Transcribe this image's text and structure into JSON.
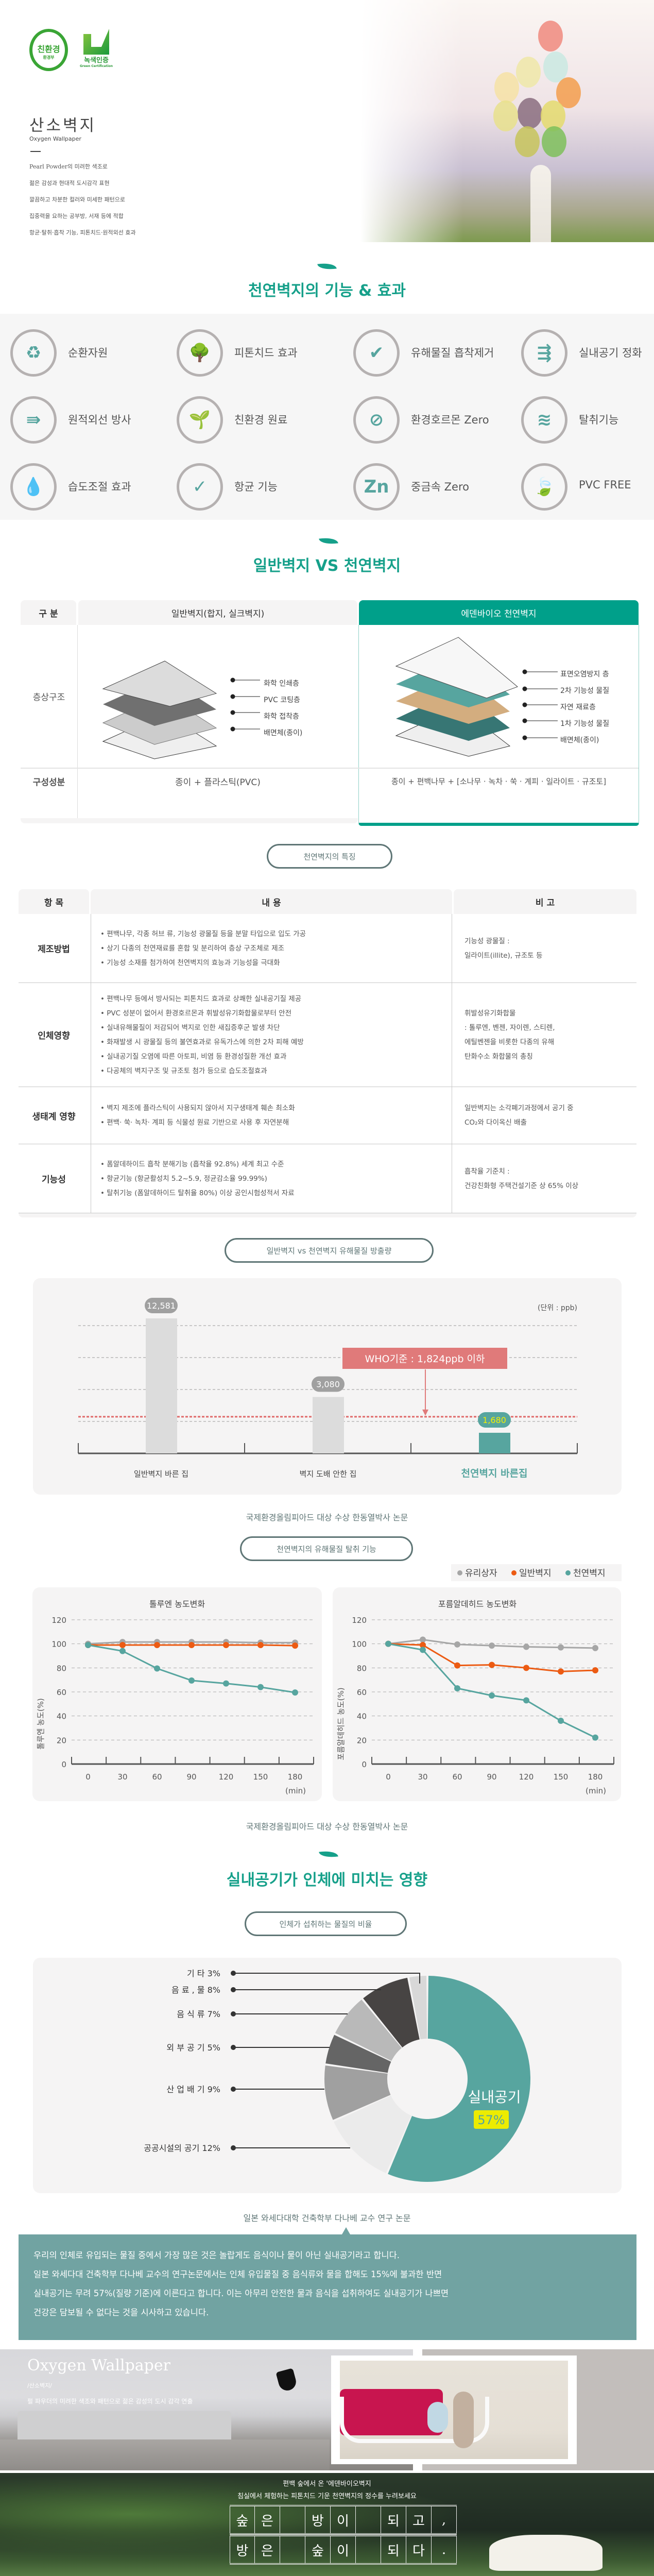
{
  "hero": {
    "logo_eco": "친환경",
    "logo_eco_sub": "환경부",
    "logo_green": "녹색인증",
    "logo_green_sub": "Green Certification",
    "title": "산소벽지",
    "subtitle": "Oxygen Wallpaper",
    "lines": [
      "Pearl Powder의 미려한 색조로",
      "젊은 감성과 현대적 도시감각 표현",
      "깔끔하고 차분한 컬러와 미세한 패턴으로",
      "집중력을 요하는 공부방, 서재 등에 적합",
      "항균·탈취·흡착 기능, 피톤치드·원적외선 효과"
    ]
  },
  "features": {
    "title": "천연벽지의 기능 & 효과",
    "items": [
      {
        "label": "순환자원",
        "icon": "recycle-icon",
        "glyph": "♻"
      },
      {
        "label": "피톤치드 효과",
        "icon": "tree-icon",
        "glyph": "🌳"
      },
      {
        "label": "유해물질 흡착제거",
        "icon": "shield-check-icon",
        "glyph": "✔"
      },
      {
        "label": "실내공기 정화",
        "icon": "air-filter-icon",
        "glyph": "⇶"
      },
      {
        "label": "원적외선 방사",
        "icon": "infrared-icon",
        "glyph": "⇛"
      },
      {
        "label": "친환경 원료",
        "icon": "sprout-hand-icon",
        "glyph": "🌱"
      },
      {
        "label": "환경호르몬 Zero",
        "icon": "no-gas-mask-icon",
        "glyph": "⊘"
      },
      {
        "label": "탈취기능",
        "icon": "deodorize-icon",
        "glyph": "≋"
      },
      {
        "label": "습도조절 효과",
        "icon": "water-drops-icon",
        "glyph": "💧"
      },
      {
        "label": "항균 기능",
        "icon": "antibacterial-shield-icon",
        "glyph": "✓"
      },
      {
        "label": "중금속 Zero",
        "icon": "no-zn-icon",
        "glyph": "Zn"
      },
      {
        "label": "PVC FREE",
        "icon": "pvc-free-leaf-icon",
        "glyph": "🍃"
      }
    ]
  },
  "compare": {
    "title": "일반벽지 VS 천연벽지",
    "col_head": "구 분",
    "general_head": "일반벽지(합지, 실크벽지)",
    "natural_head": "에덴바이오 천연벽지",
    "row_structure": "층상구조",
    "row_component": "구성성분",
    "general_layers": [
      "화학 인쇄층",
      "PVC 코팅층",
      "화학 접착층",
      "배면체(종이)"
    ],
    "natural_layers": [
      "표면오염방지 층",
      "2차 기능성 물질",
      "자연 재료층",
      "1차 기능성 물질",
      "배면체(종이)"
    ],
    "general_component": "종이 + 플라스틱(PVC)",
    "natural_component": "종이 + 편백나무 + [소나무 · 녹차 · 쑥 · 계피 · 일라이트 · 규조토]",
    "colors": {
      "accent": "#00a08a",
      "layer_teal": "#57a59f",
      "layer_dark_teal": "#377674"
    }
  },
  "characteristics": {
    "button": "천연벽지의 특징",
    "headers": [
      "항 목",
      "내   용",
      "비 고"
    ],
    "rows": [
      {
        "name": "제조방법",
        "items": [
          "편백나무, 각종 허브 류, 기능성 광물질 등을 분말 타입으로 입도 가공",
          "상기 다종의 천연재료를 혼합 및 분리하여 층상 구조체로 제조",
          "기능성 소재를 첨가하여 천연벽지의 효능과 기능성을 극대화"
        ],
        "note": [
          "기능성 광물질 :",
          "일라이트(illite), 규조토 등"
        ]
      },
      {
        "name": "인체영향",
        "items": [
          "편백나무 등에서 방사되는 피톤치드 효과로 상쾌한 실내공기질 제공",
          "PVC 성분이 없어서 환경호르몬과 휘발성유기화합물로부터 안전",
          "실내유해물질이 저감되어 벽지로 인한 새집증후군 발생 차단",
          "화재발생 시 광물질 등의 불연효과로 유독가스에 의한 2차 피해 예방",
          "실내공기질 오염에 따른 아토피, 비염 등 환경성질환 개선 효과",
          "다공체의 벽지구조 및 규조토 첨가 등으로 습도조절효과"
        ],
        "note": [
          "휘발성유기화합물",
          ": 톨루엔, 벤젠, 자이렌, 스티렌,",
          "  에틸벤젠을 비롯한 다종의 유해",
          "  탄화수소 화합물의 총칭"
        ]
      },
      {
        "name": "생태계 영향",
        "items": [
          "벽지 제조에 플라스틱이 사용되지 않아서 지구생태계 훼손 최소화",
          "편백· 쑥· 녹차· 계피 등 식물성 원료 기반으로 사용 후 자연분해"
        ],
        "note": [
          "일반벽지는 소각폐기과정에서 공기 중",
          "CO₂와 다이옥신 배출"
        ]
      },
      {
        "name": "기능성",
        "items": [
          "폼알데하이드 흡착 분해기능 (흡착율 92.8%) 세계 최고 수준",
          "항균기능 (항균활성치 5.2~5.9, 정균감소율 99.99%)",
          "탈취기능 (폼알데하이드 탈취율 80%) 이상 공인시험성적서 자료"
        ],
        "note": [
          "흡착율 기준치 :",
          "건강친화형 주택건설기준 상 65% 이상"
        ]
      }
    ]
  },
  "emission": {
    "button": "일반벽지 vs 천연벽지 유해물질 방출량",
    "caption": "국제환경올림피아드 대상 수상 한동열박사 논문"
  },
  "deodorize": {
    "button": "천연벽지의 유해물질 탈취 기능",
    "caption": "국제환경올림피아드 대상 수상 한동열박사 논문"
  },
  "indoor": {
    "title": "실내공기가 인체에 미치는 영향",
    "button": "인체가 섭취하는 물질의 비율",
    "caption": "일본 와세다대학 건축학부 다나베 교수 연구 논문",
    "message": [
      "우리의 인체로 유입되는 물질 중에서 가장 많은 것은 놀랍게도 음식이나 물이 아닌 실내공기라고 합니다.",
      "일본 와세다대 건축학부 다나베 교수의 연구논문에서는 인체 유입물질 중 음식류와 물을 합해도 15%에 불과한 반면",
      "실내공기는 무려 57%(질량 기준)에 이른다고 합니다. 이는 아무리 안전한 물과 음식을 섭취하여도 실내공기가 나쁘면",
      "건강은 담보될 수 없다는 것을 시사하고 있습니다."
    ]
  },
  "gallery": {
    "title": "Oxygen Wallpaper",
    "tag": "/산소벽지/",
    "desc": "펄 파우더의 미려한 색조와 패턴으로 젊은 감성의 도시 감각 연출"
  },
  "forest": {
    "line1": "편백 숲에서 온 '에덴바이오벽지",
    "line2": "침실에서 체험하는 피톤치드 기운 천연벽지의 정수를 누려보세요",
    "grid_row1": [
      "숲",
      "은",
      "",
      "방",
      "이",
      "",
      "되",
      "고",
      ","
    ],
    "grid_row2": [
      "방",
      "은",
      "",
      "숲",
      "이",
      "",
      "되",
      "다",
      "."
    ]
  },
  "chart_data": [
    {
      "type": "bar",
      "title": "일반벽지 vs 천연벽지 유해물질 방출량",
      "unit_label": "(단위 : ppb)",
      "categories": [
        "일반벽지 바른 집",
        "벽지 도배 안한 집",
        "천연벽지 바른집"
      ],
      "values": [
        12581,
        3080,
        1680
      ],
      "value_labels": [
        "12,581",
        "3,080",
        "1,680"
      ],
      "reference": {
        "label": "WHO기준 : 1,824ppb 이하",
        "value": 1824
      },
      "colors": [
        "#dcdcdc",
        "#dcdcdc",
        "#57a59f"
      ],
      "grid": true
    },
    {
      "type": "line",
      "title": "톨루엔 농도변화",
      "ylabel": "톨루엔 농도(%)",
      "xlabel": "(min)",
      "x": [
        0,
        30,
        60,
        90,
        120,
        150,
        180
      ],
      "yticks": [
        0,
        20,
        40,
        60,
        80,
        100,
        120
      ],
      "ylim": [
        0,
        120
      ],
      "series": [
        {
          "name": "유리상자",
          "color": "#a6a6a6",
          "values": [
            100,
            101.5,
            101.5,
            101.5,
            101.5,
            101,
            101
          ]
        },
        {
          "name": "일반벽지",
          "color": "#ec5b13",
          "values": [
            99,
            99,
            99,
            99,
            99,
            99,
            98.5
          ]
        },
        {
          "name": "천연벽지",
          "color": "#57a59f",
          "values": [
            99,
            94,
            79.5,
            69.5,
            67,
            64,
            59.5
          ]
        }
      ]
    },
    {
      "type": "line",
      "title": "포름알데히드 농도변화",
      "ylabel": "포름알데히드 농도(%)",
      "xlabel": "(min)",
      "x": [
        0,
        30,
        60,
        90,
        120,
        150,
        180
      ],
      "yticks": [
        0,
        20,
        40,
        60,
        80,
        100,
        120
      ],
      "ylim": [
        0,
        120
      ],
      "legend": "top-right",
      "series": [
        {
          "name": "유리상자",
          "color": "#a6a6a6",
          "values": [
            100,
            103.5,
            99.5,
            98.5,
            97.5,
            97,
            96.5
          ]
        },
        {
          "name": "일반벽지",
          "color": "#ec5b13",
          "values": [
            100,
            99,
            82,
            82.5,
            80,
            77,
            78
          ]
        },
        {
          "name": "천연벽지",
          "color": "#57a59f",
          "values": [
            100,
            95,
            63,
            57,
            53,
            36,
            22
          ]
        }
      ]
    },
    {
      "type": "pie",
      "title": "인체가 섭취하는 물질의 비율",
      "slices": [
        {
          "label": "실내공기",
          "value": 57,
          "display": "57%",
          "color": "#57a59f"
        },
        {
          "label": "공공시설의 공기 12%",
          "value": 12,
          "color": "#ebebeb"
        },
        {
          "label": "산 업 배 기 9%",
          "value": 9,
          "color": "#a0a0a0"
        },
        {
          "label": "외 부 공 기 5%",
          "value": 5,
          "color": "#656565"
        },
        {
          "label": "음  식  류 7%",
          "value": 7,
          "color": "#b9b9b9"
        },
        {
          "label": "음 료 ,  물 8%",
          "value": 8,
          "color": "#474443"
        },
        {
          "label": "기        타 3%",
          "value": 3,
          "color": "#d8d8d8"
        }
      ]
    }
  ]
}
